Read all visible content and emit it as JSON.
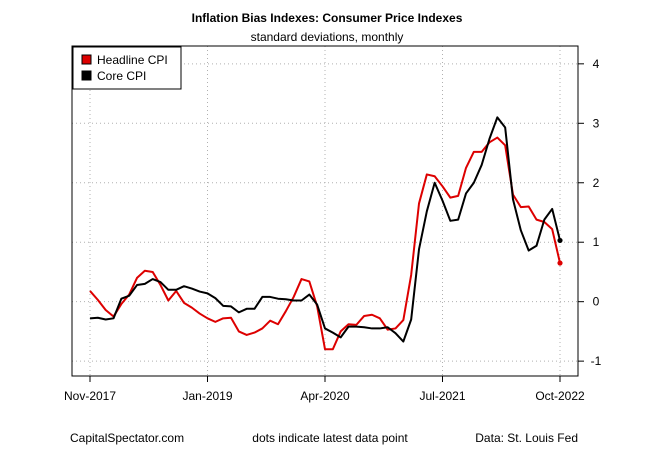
{
  "chart_data": {
    "type": "line",
    "title": "Inflation Bias Indexes: Consumer Price Indexes",
    "subtitle": "standard deviations, monthly",
    "xlim": [
      0,
      60
    ],
    "ylim": [
      -1.25,
      4.3
    ],
    "x_ticks": [
      {
        "x": 0,
        "label": "Nov-2017"
      },
      {
        "x": 15,
        "label": "Jan-2019"
      },
      {
        "x": 30,
        "label": "Apr-2020"
      },
      {
        "x": 45,
        "label": "Jul-2021"
      },
      {
        "x": 60,
        "label": "Oct-2022"
      }
    ],
    "y_ticks": [
      -1,
      0,
      1,
      2,
      3,
      4
    ],
    "grid": true,
    "legend": {
      "placement": "top-left"
    },
    "series": [
      {
        "name": "Headline CPI",
        "color": "#dd0000",
        "values": [
          0.18,
          0.03,
          -0.14,
          -0.25,
          -0.04,
          0.12,
          0.4,
          0.52,
          0.5,
          0.28,
          0.02,
          0.18,
          -0.02,
          -0.1,
          -0.2,
          -0.28,
          -0.34,
          -0.28,
          -0.27,
          -0.5,
          -0.56,
          -0.52,
          -0.45,
          -0.32,
          -0.38,
          -0.16,
          0.08,
          0.38,
          0.34,
          -0.08,
          -0.8,
          -0.8,
          -0.5,
          -0.38,
          -0.39,
          -0.24,
          -0.22,
          -0.28,
          -0.47,
          -0.45,
          -0.31,
          0.45,
          1.65,
          2.14,
          2.11,
          1.94,
          1.75,
          1.78,
          2.25,
          2.52,
          2.52,
          2.68,
          2.76,
          2.63,
          1.8,
          1.59,
          1.6,
          1.38,
          1.34,
          1.22,
          0.65
        ]
      },
      {
        "name": "Core CPI",
        "color": "#000000",
        "values": [
          -0.28,
          -0.27,
          -0.3,
          -0.28,
          0.05,
          0.1,
          0.28,
          0.3,
          0.38,
          0.33,
          0.2,
          0.2,
          0.26,
          0.22,
          0.17,
          0.14,
          0.06,
          -0.07,
          -0.08,
          -0.18,
          -0.12,
          -0.12,
          0.08,
          0.08,
          0.05,
          0.04,
          0.02,
          0.02,
          0.12,
          -0.05,
          -0.45,
          -0.52,
          -0.6,
          -0.42,
          -0.42,
          -0.43,
          -0.45,
          -0.45,
          -0.43,
          -0.53,
          -0.67,
          -0.3,
          0.88,
          1.52,
          2.0,
          1.7,
          1.36,
          1.38,
          1.82,
          2.0,
          2.3,
          2.74,
          3.1,
          2.93,
          1.72,
          1.2,
          0.86,
          0.94,
          1.38,
          1.56,
          1.03
        ]
      }
    ]
  },
  "footer": {
    "left": "CapitalSpectator.com",
    "center": "dots indicate latest data point",
    "right": "Data: St. Louis Fed"
  }
}
